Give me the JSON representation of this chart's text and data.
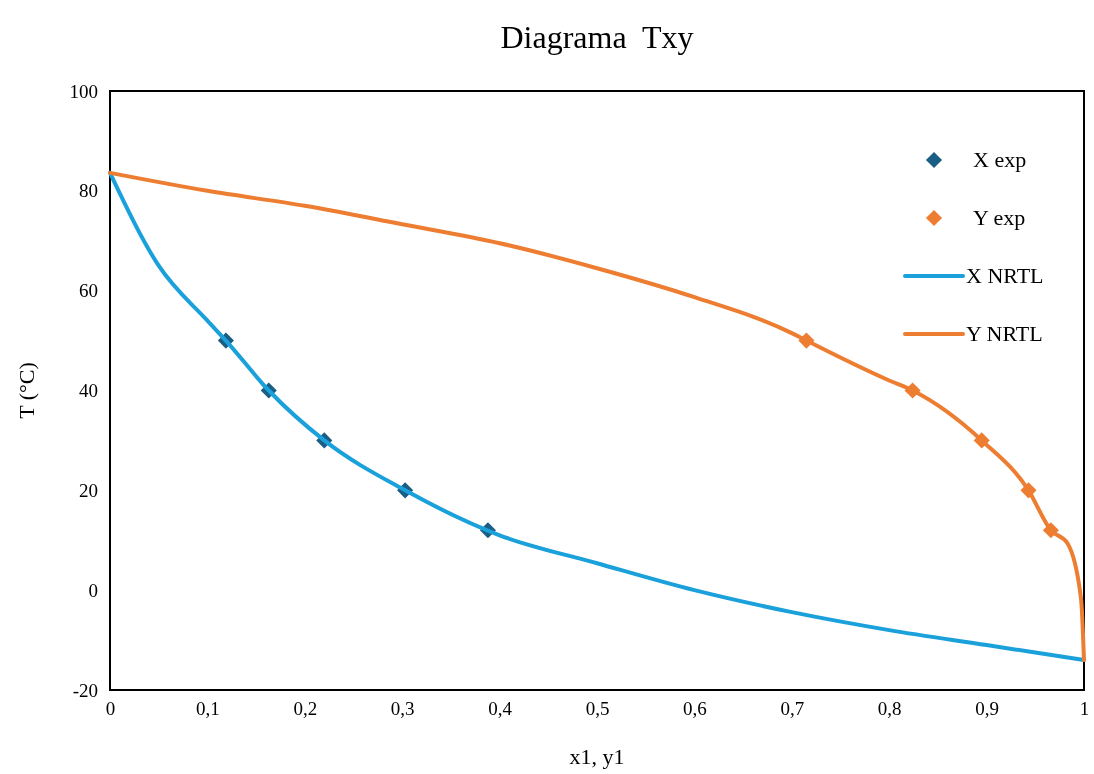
{
  "chart_data": {
    "type": "scatter",
    "title": "Diagrama  Txy",
    "xlabel": "x1, y1",
    "ylabel": "T (°C)",
    "xlim": [
      0,
      1
    ],
    "ylim": [
      -20,
      100
    ],
    "xticks": [
      0,
      {
        "value": 0.1,
        "label": "0,1"
      },
      {
        "value": 0.2,
        "label": "0,2"
      },
      {
        "value": 0.3,
        "label": "0,3"
      },
      {
        "value": 0.4,
        "label": "0,4"
      },
      {
        "value": 0.5,
        "label": "0,5"
      },
      {
        "value": 0.6,
        "label": "0,6"
      },
      {
        "value": 0.7,
        "label": "0,7"
      },
      {
        "value": 0.8,
        "label": "0,8"
      },
      {
        "value": 0.9,
        "label": "0,9"
      },
      1
    ],
    "yticks": [
      -20,
      0,
      20,
      40,
      60,
      80,
      100
    ],
    "grid": false,
    "legend": "top right",
    "series": [
      {
        "name": "X exp",
        "marker": "diamond",
        "color": "#1b5e84",
        "x": [
          0.119,
          0.163,
          0.22,
          0.303,
          0.388
        ],
        "values": [
          50,
          40,
          30,
          20,
          12
        ]
      },
      {
        "name": "Y exp",
        "marker": "diamond",
        "color": "#ed7d31",
        "x": [
          0.715,
          0.824,
          0.895,
          0.943,
          0.966
        ],
        "values": [
          50,
          40,
          30,
          20,
          12
        ]
      },
      {
        "name": "X NRTL",
        "type": "line",
        "marker": "none",
        "color": "#1aa0da",
        "x": [
          0,
          0.05,
          0.1,
          0.119,
          0.163,
          0.22,
          0.303,
          0.4,
          0.5,
          0.6,
          0.7,
          0.8,
          0.9,
          1
        ],
        "values": [
          83.6,
          65,
          54,
          50,
          40,
          30,
          20,
          11,
          5.4,
          0,
          -4.4,
          -8,
          -11,
          -14
        ]
      },
      {
        "name": "Y NRTL",
        "type": "line",
        "marker": "none",
        "color": "#ed7d31",
        "x": [
          0,
          0.1,
          0.2,
          0.3,
          0.4,
          0.5,
          0.6,
          0.7,
          0.715,
          0.8,
          0.824,
          0.895,
          0.943,
          0.966,
          0.983,
          0.997,
          1
        ],
        "values": [
          83.6,
          80,
          77,
          73.3,
          69.5,
          64.5,
          58.7,
          51.5,
          50,
          42,
          40,
          30,
          20,
          12,
          9.4,
          -1.8,
          -14
        ]
      }
    ]
  }
}
